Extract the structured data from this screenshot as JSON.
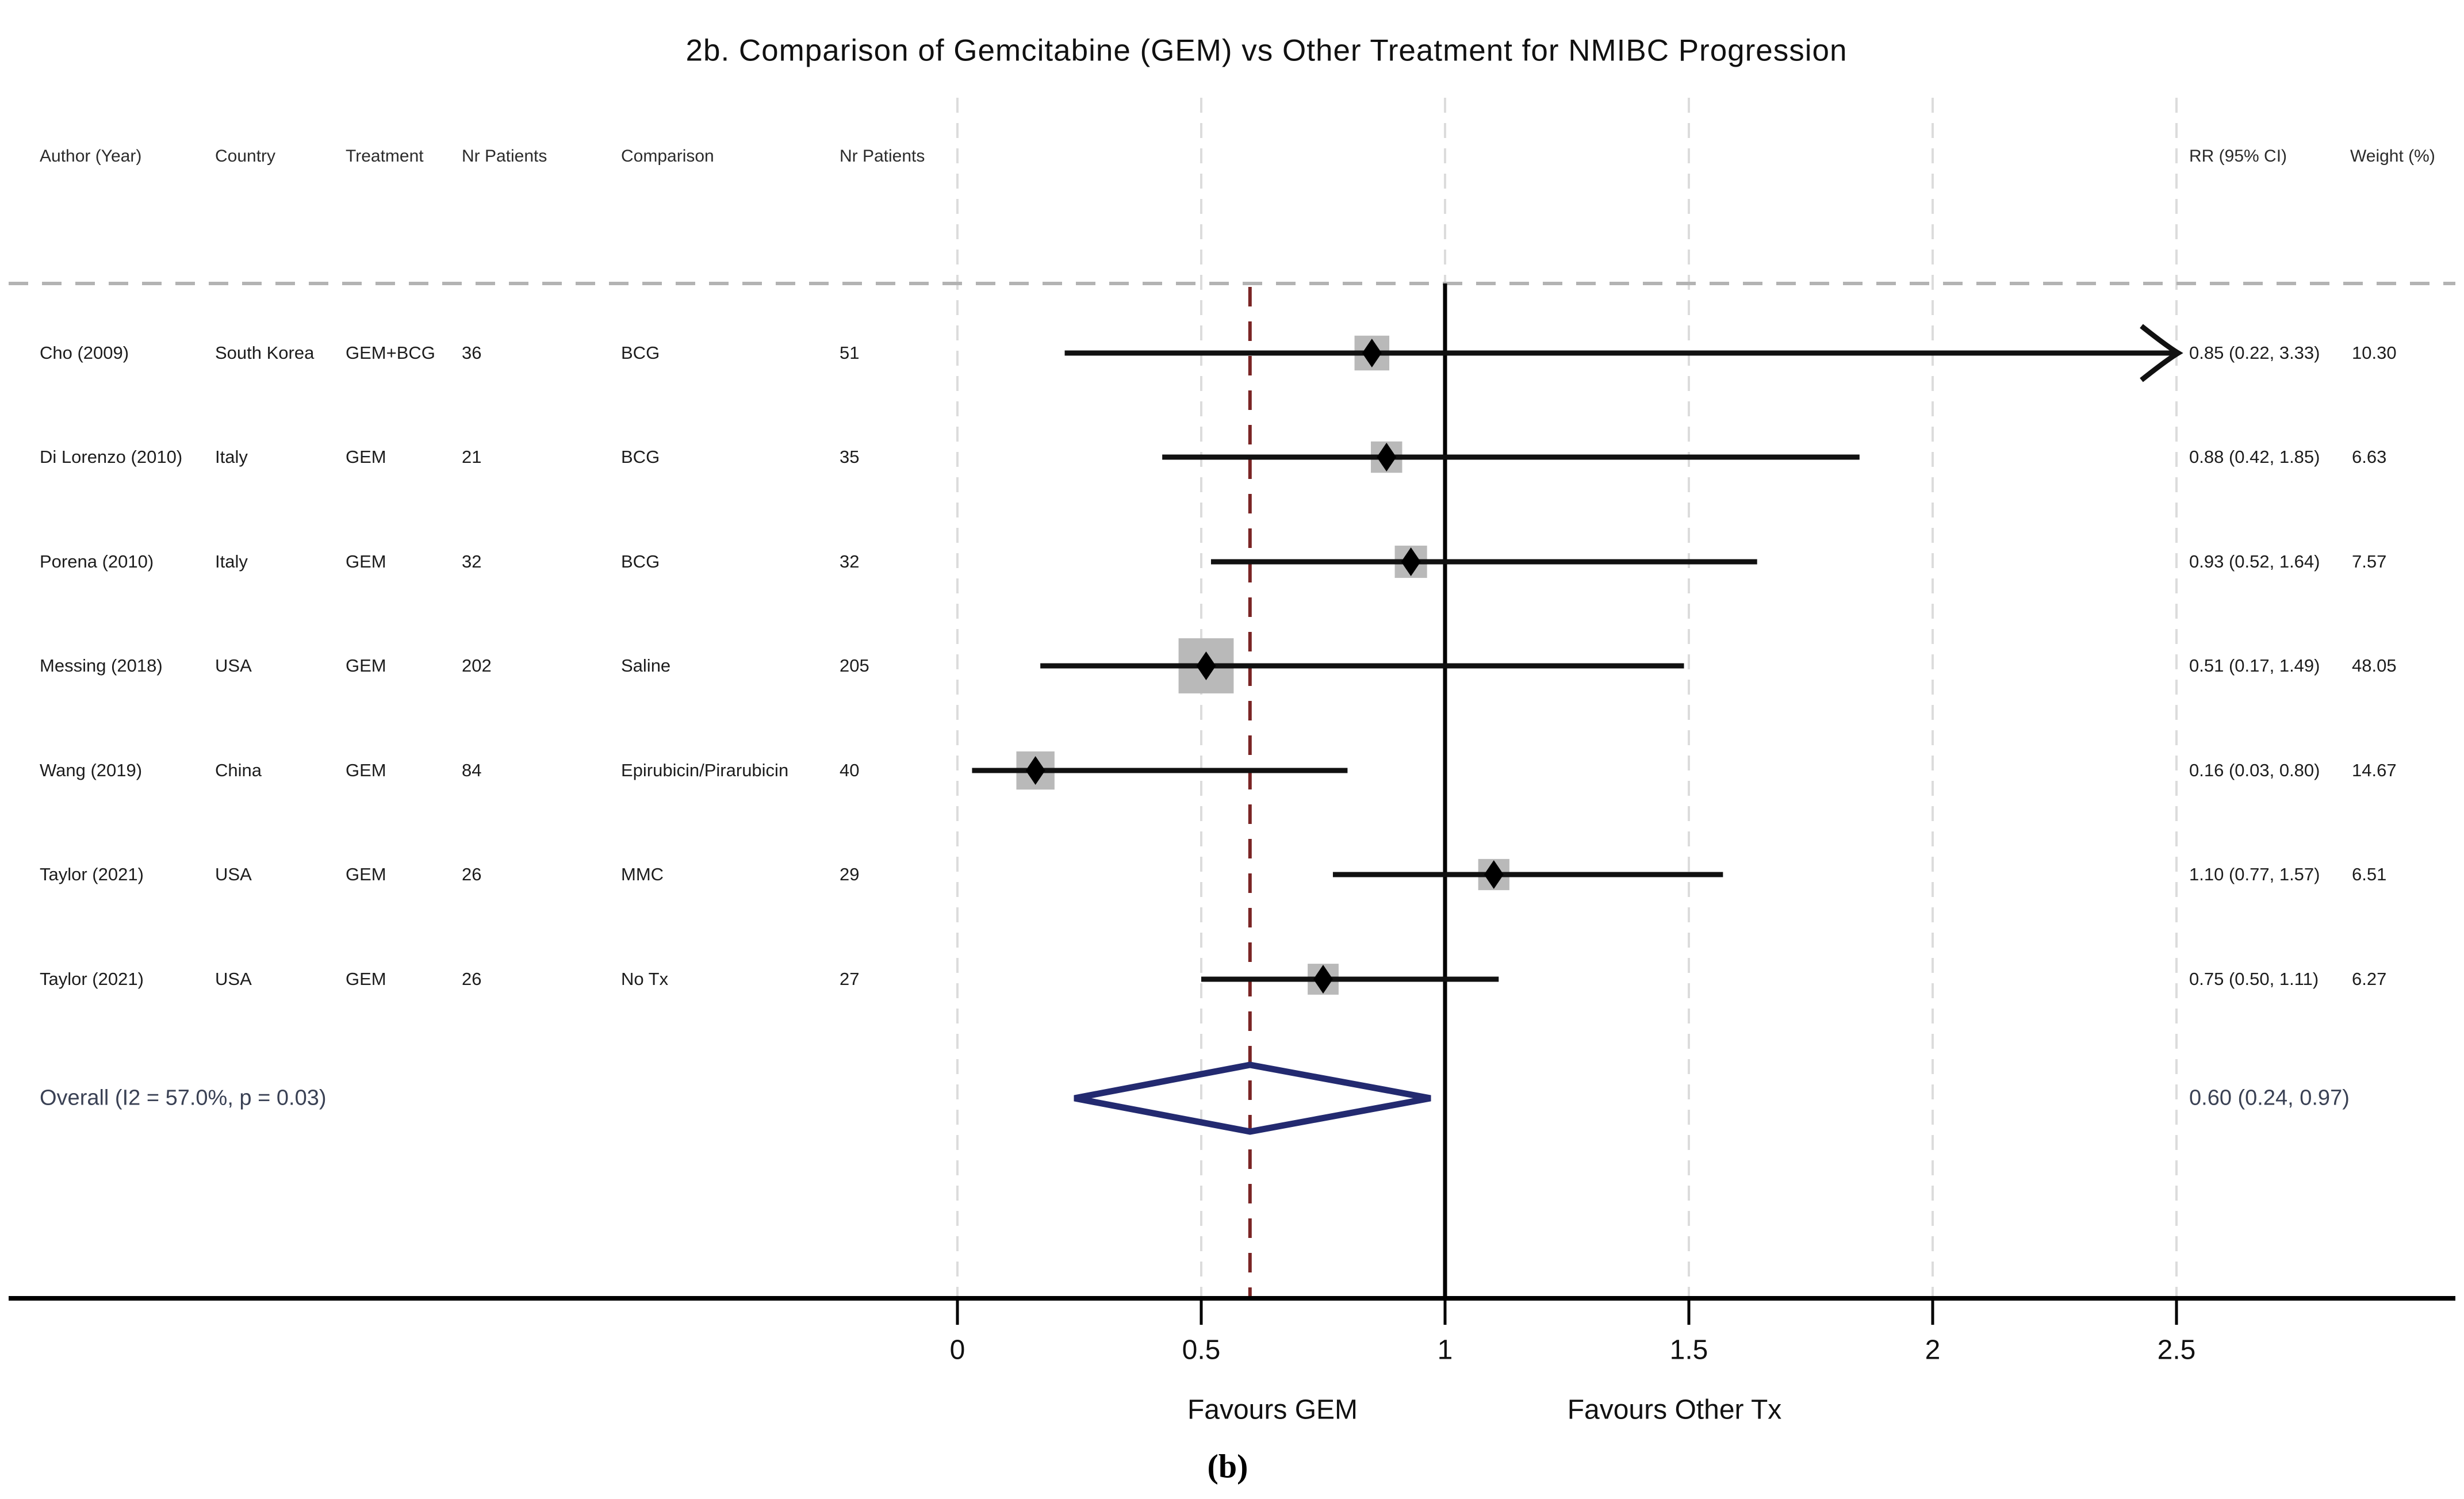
{
  "figure": {
    "title": "2b. Comparison of Gemcitabine (GEM) vs Other Treatment for NMIBC Progression",
    "panel_label": "(b)",
    "column_headers": [
      {
        "key": "author",
        "label": "Author (Year)"
      },
      {
        "key": "country",
        "label": "Country"
      },
      {
        "key": "treatment",
        "label": "Treatment"
      },
      {
        "key": "n_tx",
        "label": "Nr Patients"
      },
      {
        "key": "comparison",
        "label": "Comparison"
      },
      {
        "key": "n_comp",
        "label": "Nr Patients"
      },
      {
        "key": "rr",
        "label": "RR (95% CI)"
      },
      {
        "key": "weight",
        "label": "Weight (%)"
      }
    ],
    "overall": {
      "label": "Overall  (I2 = 57.0%, p = 0.03)",
      "rr_text": "0.60 (0.24, 0.97)"
    },
    "axis": {
      "favours_left": "Favours GEM",
      "favours_right": "Favours Other Tx"
    }
  },
  "chart_data": {
    "type": "forest",
    "x_ticks": [
      "0",
      "0.5",
      "1",
      "1.5",
      "2",
      "2.5"
    ],
    "x_tick_values": [
      0,
      0.5,
      1,
      1.5,
      2,
      2.5
    ],
    "x_range": [
      0,
      2.5
    ],
    "null_line": 1.0,
    "overall_reference_line": 0.6,
    "studies": [
      {
        "author": "Cho (2009)",
        "country": "South Korea",
        "treatment": "GEM+BCG",
        "n_tx": "36",
        "comparison": "BCG",
        "n_comp": "51",
        "rr": 0.85,
        "lo": 0.22,
        "hi": 3.33,
        "rr_text": "0.85 (0.22, 3.33)",
        "weight": 10.3,
        "weight_text": "10.30",
        "arrow_right": true
      },
      {
        "author": "Di Lorenzo (2010)",
        "country": "Italy",
        "treatment": "GEM",
        "n_tx": "21",
        "comparison": "BCG",
        "n_comp": "35",
        "rr": 0.88,
        "lo": 0.42,
        "hi": 1.85,
        "rr_text": "0.88 (0.42, 1.85)",
        "weight": 6.63,
        "weight_text": "6.63",
        "arrow_right": false
      },
      {
        "author": "Porena (2010)",
        "country": "Italy",
        "treatment": "GEM",
        "n_tx": "32",
        "comparison": "BCG",
        "n_comp": "32",
        "rr": 0.93,
        "lo": 0.52,
        "hi": 1.64,
        "rr_text": "0.93 (0.52, 1.64)",
        "weight": 7.57,
        "weight_text": "7.57",
        "arrow_right": false
      },
      {
        "author": "Messing (2018)",
        "country": "USA",
        "treatment": "GEM",
        "n_tx": "202",
        "comparison": "Saline",
        "n_comp": "205",
        "rr": 0.51,
        "lo": 0.17,
        "hi": 1.49,
        "rr_text": "0.51 (0.17, 1.49)",
        "weight": 48.05,
        "weight_text": "48.05",
        "arrow_right": false
      },
      {
        "author": "Wang (2019)",
        "country": "China",
        "treatment": "GEM",
        "n_tx": "84",
        "comparison": "Epirubicin/Pirarubicin",
        "n_comp": "40",
        "rr": 0.16,
        "lo": 0.03,
        "hi": 0.8,
        "rr_text": "0.16 (0.03, 0.80)",
        "weight": 14.67,
        "weight_text": "14.67",
        "arrow_right": false
      },
      {
        "author": "Taylor (2021)",
        "country": "USA",
        "treatment": "GEM",
        "n_tx": "26",
        "comparison": "MMC",
        "n_comp": "29",
        "rr": 1.1,
        "lo": 0.77,
        "hi": 1.57,
        "rr_text": "1.10 (0.77, 1.57)",
        "weight": 6.51,
        "weight_text": "6.51",
        "arrow_right": false
      },
      {
        "author": "Taylor (2021)",
        "country": "USA",
        "treatment": "GEM",
        "n_tx": "26",
        "comparison": "No Tx",
        "n_comp": "27",
        "rr": 0.75,
        "lo": 0.5,
        "hi": 1.11,
        "rr_text": "0.75 (0.50, 1.11)",
        "weight": 6.27,
        "weight_text": "6.27",
        "arrow_right": false
      }
    ],
    "overall": {
      "rr": 0.6,
      "lo": 0.24,
      "hi": 0.97,
      "heterogeneity": "I2 = 57.0%, p = 0.03"
    },
    "legend_position": "none",
    "grid": "dashed-vertical"
  },
  "colors": {
    "ci_line": "#111111",
    "marker_square": "#b9b9b9",
    "marker_point": "#000000",
    "null_line": "#000000",
    "overall_ref_line": "#7a2424",
    "diamond_outline": "#232a70",
    "gridline": "#dcdcdc",
    "separator_dash": "#b3b3b3",
    "overall_text": "#3a4154"
  }
}
